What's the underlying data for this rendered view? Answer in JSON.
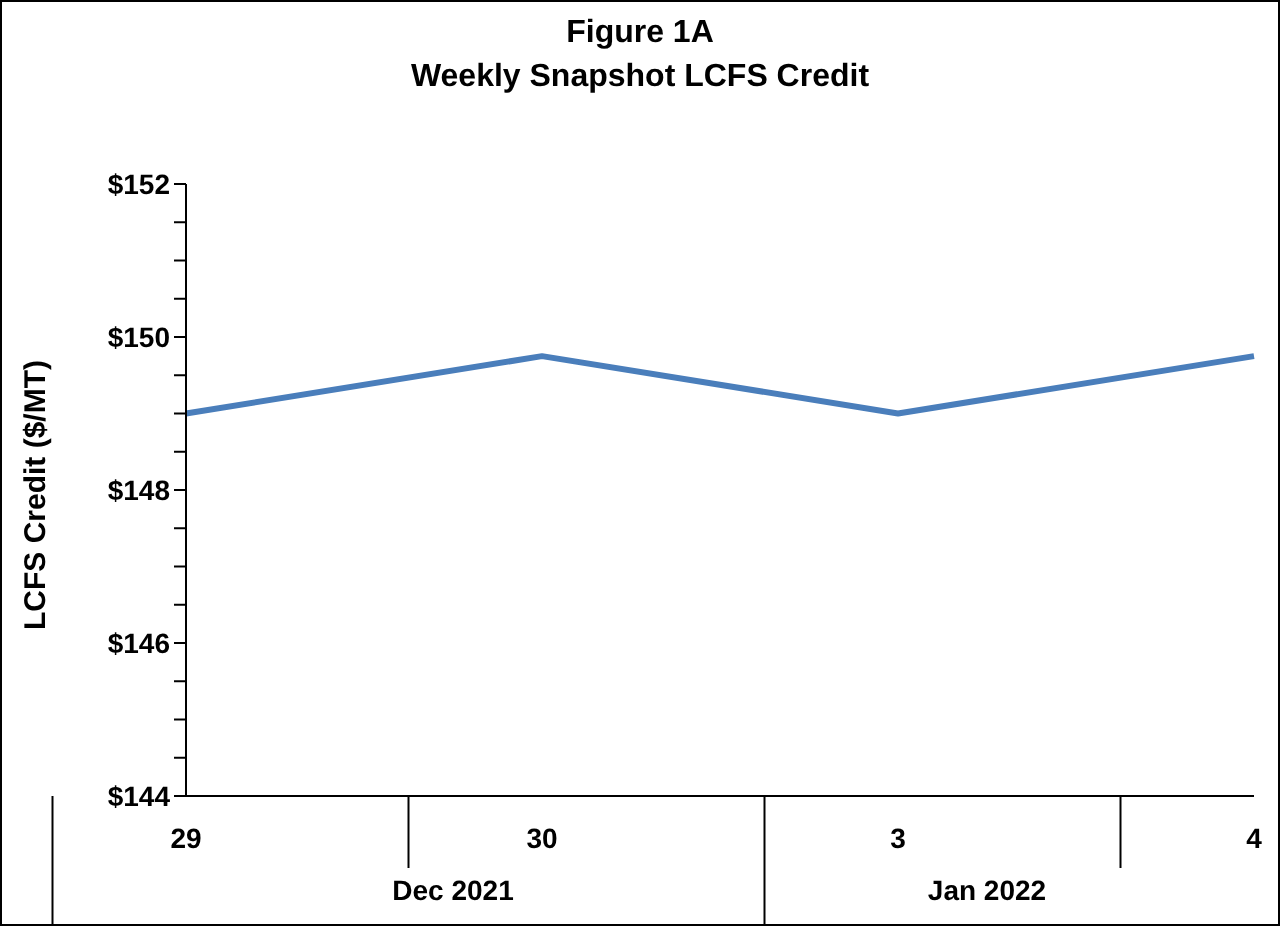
{
  "chart_data": {
    "type": "line",
    "title": "Figure 1A",
    "subtitle": "Weekly Snapshot LCFS Credit",
    "ylabel": "LCFS Credit ($/MT)",
    "categories": [
      "29",
      "30",
      "3",
      "4"
    ],
    "annotations": [
      "Dec 2021",
      "Jan 2022"
    ],
    "series": [
      {
        "color": "#4a7ebb",
        "values": [
          149,
          149.75,
          149,
          149.75
        ]
      }
    ],
    "ylim": [
      144,
      152
    ],
    "yticks": [
      {
        "value": 144,
        "label": "$144"
      },
      {
        "value": 144.5,
        "label": null
      },
      {
        "value": 145,
        "label": null
      },
      {
        "value": 145.5,
        "label": null
      },
      {
        "value": 146,
        "label": "$146"
      },
      {
        "value": 146.5,
        "label": null
      },
      {
        "value": 147,
        "label": null
      },
      {
        "value": 147.5,
        "label": null
      },
      {
        "value": 148,
        "label": "$148"
      },
      {
        "value": 148.5,
        "label": null
      },
      {
        "value": 149,
        "label": null
      },
      {
        "value": 149.5,
        "label": null
      },
      {
        "value": 150,
        "label": "$150"
      },
      {
        "value": 150.5,
        "label": null
      },
      {
        "value": 151,
        "label": null
      },
      {
        "value": 151.5,
        "label": null
      },
      {
        "value": 152,
        "label": "$152"
      }
    ],
    "grid": false,
    "legend": false,
    "marker": "none",
    "line_style": "solid"
  }
}
